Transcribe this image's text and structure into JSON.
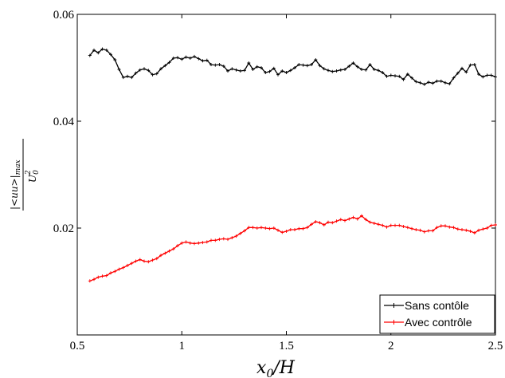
{
  "chart_data": {
    "type": "line",
    "xlabel": "x0/H",
    "ylabel": "|<uu>|max / U0^2",
    "xlim": [
      0.5,
      2.5
    ],
    "ylim": [
      0.0,
      0.06
    ],
    "grid": false,
    "legend_position": "bottom-right",
    "x_ticks": [
      0.5,
      1,
      1.5,
      2,
      2.5
    ],
    "x_tick_labels": [
      "0.5",
      "1",
      "1.5",
      "2",
      "2.5"
    ],
    "y_ticks": [
      0.02,
      0.04,
      0.06
    ],
    "y_tick_labels": [
      "0.02",
      "0.04",
      "0.06"
    ],
    "series": [
      {
        "name": "Sans contôle",
        "color": "#000000",
        "x": [
          0.56,
          0.58,
          0.6,
          0.62,
          0.64,
          0.66,
          0.68,
          0.7,
          0.72,
          0.74,
          0.76,
          0.78,
          0.8,
          0.82,
          0.84,
          0.86,
          0.88,
          0.9,
          0.92,
          0.94,
          0.96,
          0.98,
          1.0,
          1.02,
          1.04,
          1.06,
          1.08,
          1.1,
          1.12,
          1.14,
          1.16,
          1.18,
          1.2,
          1.22,
          1.24,
          1.26,
          1.28,
          1.3,
          1.32,
          1.34,
          1.36,
          1.38,
          1.4,
          1.42,
          1.44,
          1.46,
          1.48,
          1.5,
          1.52,
          1.54,
          1.56,
          1.58,
          1.6,
          1.62,
          1.64,
          1.66,
          1.68,
          1.7,
          1.72,
          1.74,
          1.76,
          1.78,
          1.8,
          1.82,
          1.84,
          1.86,
          1.88,
          1.9,
          1.92,
          1.94,
          1.96,
          1.98,
          2.0,
          2.02,
          2.04,
          2.06,
          2.08,
          2.1,
          2.12,
          2.14,
          2.16,
          2.18,
          2.2,
          2.22,
          2.24,
          2.26,
          2.28,
          2.3,
          2.32,
          2.34,
          2.36,
          2.38,
          2.4,
          2.42,
          2.44,
          2.46,
          2.48,
          2.5
        ],
        "y": [
          0.0523,
          0.0533,
          0.0528,
          0.0535,
          0.0533,
          0.0525,
          0.0515,
          0.0497,
          0.0482,
          0.0484,
          0.0482,
          0.049,
          0.0496,
          0.0498,
          0.0495,
          0.0487,
          0.0489,
          0.0498,
          0.0504,
          0.051,
          0.0518,
          0.0519,
          0.0516,
          0.052,
          0.0518,
          0.0521,
          0.0517,
          0.0513,
          0.0514,
          0.0506,
          0.0505,
          0.0506,
          0.0503,
          0.0494,
          0.0498,
          0.0496,
          0.0494,
          0.0495,
          0.0509,
          0.0497,
          0.0502,
          0.05,
          0.0491,
          0.0493,
          0.0499,
          0.0487,
          0.0494,
          0.0491,
          0.0495,
          0.05,
          0.0506,
          0.0505,
          0.0504,
          0.0506,
          0.0515,
          0.0504,
          0.0498,
          0.0495,
          0.0493,
          0.0494,
          0.0496,
          0.0497,
          0.0503,
          0.0509,
          0.0502,
          0.0497,
          0.0496,
          0.0506,
          0.0497,
          0.0495,
          0.0491,
          0.0484,
          0.0486,
          0.0485,
          0.0484,
          0.0478,
          0.0488,
          0.0481,
          0.0474,
          0.0472,
          0.0469,
          0.0473,
          0.0471,
          0.0475,
          0.0475,
          0.0472,
          0.047,
          0.0481,
          0.049,
          0.0499,
          0.0492,
          0.0505,
          0.0506,
          0.0488,
          0.0483,
          0.0486,
          0.0486,
          0.0483
        ],
        "marker": "plus"
      },
      {
        "name": "Avec contrôle",
        "color": "#ff0000",
        "x": [
          0.56,
          0.58,
          0.6,
          0.62,
          0.64,
          0.66,
          0.68,
          0.7,
          0.72,
          0.74,
          0.76,
          0.78,
          0.8,
          0.82,
          0.84,
          0.86,
          0.88,
          0.9,
          0.92,
          0.94,
          0.96,
          0.98,
          1.0,
          1.02,
          1.04,
          1.06,
          1.08,
          1.1,
          1.12,
          1.14,
          1.16,
          1.18,
          1.2,
          1.22,
          1.24,
          1.26,
          1.28,
          1.3,
          1.32,
          1.34,
          1.36,
          1.38,
          1.4,
          1.42,
          1.44,
          1.46,
          1.48,
          1.5,
          1.52,
          1.54,
          1.56,
          1.58,
          1.6,
          1.62,
          1.64,
          1.66,
          1.68,
          1.7,
          1.72,
          1.74,
          1.76,
          1.78,
          1.8,
          1.82,
          1.84,
          1.86,
          1.88,
          1.9,
          1.92,
          1.94,
          1.96,
          1.98,
          2.0,
          2.02,
          2.04,
          2.06,
          2.08,
          2.1,
          2.12,
          2.14,
          2.16,
          2.18,
          2.2,
          2.22,
          2.24,
          2.26,
          2.28,
          2.3,
          2.32,
          2.34,
          2.36,
          2.38,
          2.4,
          2.42,
          2.44,
          2.46,
          2.48,
          2.5
        ],
        "y": [
          0.0101,
          0.0104,
          0.0108,
          0.011,
          0.0111,
          0.0116,
          0.0119,
          0.0123,
          0.0126,
          0.013,
          0.0134,
          0.0138,
          0.0141,
          0.0138,
          0.0137,
          0.014,
          0.0143,
          0.0149,
          0.0153,
          0.0157,
          0.0161,
          0.0167,
          0.0172,
          0.0174,
          0.0172,
          0.0171,
          0.0172,
          0.0173,
          0.0174,
          0.0177,
          0.0177,
          0.0179,
          0.018,
          0.0179,
          0.0182,
          0.0185,
          0.019,
          0.0195,
          0.0201,
          0.0201,
          0.02,
          0.0201,
          0.02,
          0.0199,
          0.02,
          0.0196,
          0.0192,
          0.0194,
          0.0197,
          0.0197,
          0.0199,
          0.0199,
          0.0201,
          0.0207,
          0.0212,
          0.021,
          0.0206,
          0.0211,
          0.021,
          0.0213,
          0.0216,
          0.0214,
          0.0217,
          0.022,
          0.0217,
          0.0223,
          0.0216,
          0.0211,
          0.0209,
          0.0207,
          0.0205,
          0.0202,
          0.0205,
          0.0205,
          0.0205,
          0.0203,
          0.0201,
          0.0199,
          0.0197,
          0.0196,
          0.0193,
          0.0195,
          0.0195,
          0.0201,
          0.0204,
          0.0204,
          0.0202,
          0.0201,
          0.0198,
          0.0197,
          0.0196,
          0.0194,
          0.0191,
          0.0196,
          0.0198,
          0.02,
          0.0205,
          0.0206
        ],
        "marker": "plus"
      }
    ]
  }
}
